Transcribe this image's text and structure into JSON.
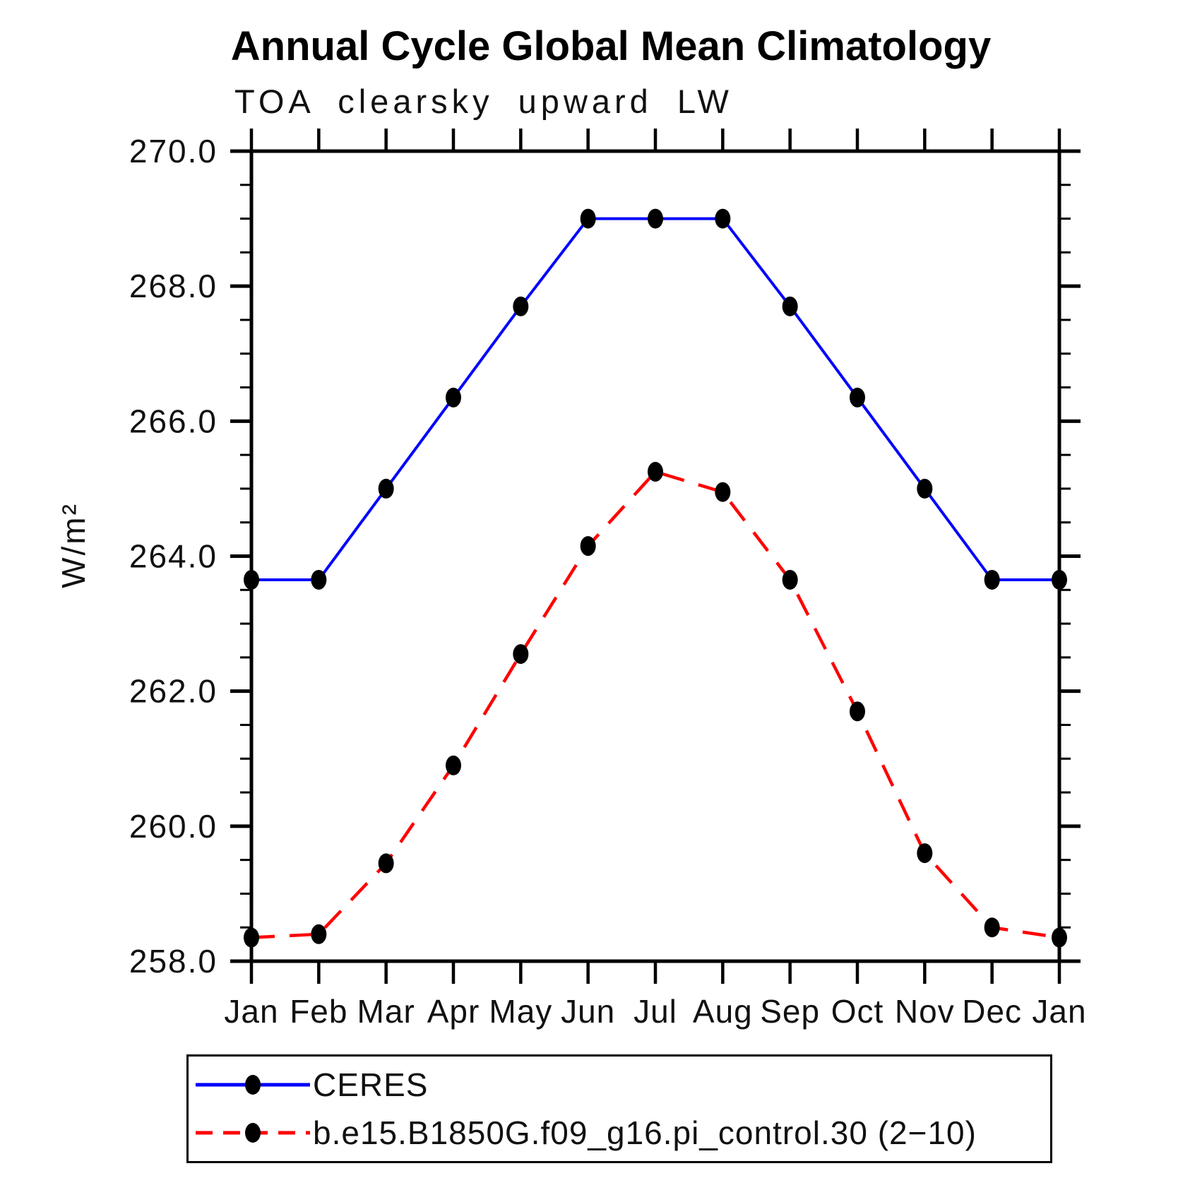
{
  "page": {
    "title": "Annual Cycle Global Mean Climatology",
    "subtitle": "TOA clearsky upward LW"
  },
  "chart_data": {
    "type": "line",
    "title": "Annual Cycle Global Mean Climatology",
    "subtitle": "TOA clearsky upward LW",
    "xlabel": "",
    "ylabel": "W/m²",
    "x_categories": [
      "Jan",
      "Feb",
      "Mar",
      "Apr",
      "May",
      "Jun",
      "Jul",
      "Aug",
      "Sep",
      "Oct",
      "Nov",
      "Dec",
      "Jan"
    ],
    "ylim": [
      258.0,
      270.0
    ],
    "ytick_labels": [
      "258.0",
      "260.0",
      "262.0",
      "264.0",
      "266.0",
      "268.0",
      "270.0"
    ],
    "ytick_major_step": 2.0,
    "ytick_minor_step": 0.5,
    "grid": "off",
    "legend_position": "bottom",
    "axis_color": "#000000",
    "marker_color": "#000000",
    "series": [
      {
        "name": "CERES",
        "color": "#0000ff",
        "style": "solid",
        "values": [
          263.65,
          263.65,
          265.0,
          266.35,
          267.7,
          269.0,
          269.0,
          269.0,
          267.7,
          266.35,
          265.0,
          263.65,
          263.65
        ]
      },
      {
        "name": "b.e15.B1850G.f09_g16.pi_control.30 (2−10)",
        "color": "#ff0000",
        "style": "dashed",
        "values": [
          258.35,
          258.4,
          259.45,
          260.9,
          262.55,
          264.15,
          265.25,
          264.95,
          263.65,
          261.7,
          259.6,
          258.5,
          258.35
        ]
      }
    ]
  }
}
